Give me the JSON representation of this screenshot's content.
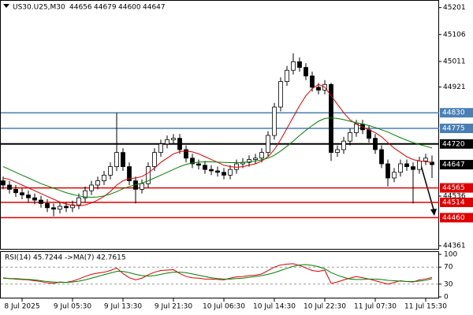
{
  "chart_data": {
    "type": "candlestick",
    "symbol": "US30.U25,M30",
    "ohlc": [
      44656,
      44679,
      44600,
      44647
    ],
    "categories": [
      null,
      null,
      null,
      "8 Jul 2025",
      null,
      null,
      null,
      null,
      null,
      null,
      null,
      "9 Jul 05:30",
      null,
      null,
      null,
      null,
      null,
      null,
      null,
      "9 Jul 13:30",
      null,
      null,
      null,
      null,
      null,
      null,
      null,
      "9 Jul 21:30",
      null,
      null,
      null,
      null,
      null,
      null,
      null,
      "10 Jul 06:30",
      null,
      null,
      null,
      null,
      null,
      null,
      null,
      "10 Jul 14:30",
      null,
      null,
      null,
      null,
      null,
      null,
      null,
      "10 Jul 22:30",
      null,
      null,
      null,
      null,
      null,
      null,
      null,
      "11 Jul 07:30",
      null,
      null,
      null,
      null,
      null,
      null,
      null,
      "11 Jul 15:30",
      null
    ],
    "open": [
      44590,
      44575,
      44560,
      44548,
      44540,
      44530,
      44522,
      44510,
      44495,
      44490,
      44500,
      44495,
      44505,
      44530,
      44555,
      44575,
      44590,
      44610,
      44640,
      44690,
      44640,
      44590,
      44560,
      44580,
      44640,
      44690,
      44720,
      44735,
      44740,
      44700,
      44670,
      44650,
      44645,
      44630,
      44625,
      44620,
      44610,
      44630,
      44650,
      44655,
      44665,
      44670,
      44690,
      44750,
      44850,
      44940,
      44980,
      45010,
      44990,
      44960,
      44920,
      44910,
      44930,
      44690,
      44700,
      44730,
      44760,
      44790,
      44770,
      44740,
      44700,
      44650,
      44600,
      44620,
      44650,
      44640,
      44630,
      44660,
      44656
    ],
    "high": [
      44605,
      44590,
      44575,
      44563,
      44555,
      44545,
      44537,
      44525,
      44510,
      44515,
      44515,
      44520,
      44545,
      44570,
      44590,
      44605,
      44625,
      44655,
      44830,
      44705,
      44655,
      44605,
      44595,
      44655,
      44705,
      44735,
      44750,
      44755,
      44755,
      44715,
      44685,
      44665,
      44660,
      44645,
      44640,
      44635,
      44645,
      44665,
      44670,
      44680,
      44685,
      44705,
      44765,
      44865,
      44955,
      44995,
      45040,
      45025,
      45005,
      44975,
      44935,
      44945,
      44935,
      44715,
      44745,
      44775,
      44805,
      44805,
      44785,
      44755,
      44715,
      44665,
      44635,
      44665,
      44665,
      44655,
      44675,
      44685,
      44679
    ],
    "low": [
      44560,
      44545,
      44533,
      44525,
      44515,
      44507,
      44495,
      44480,
      44465,
      44475,
      44480,
      44480,
      44490,
      44515,
      44540,
      44560,
      44575,
      44595,
      44625,
      44625,
      44575,
      44510,
      44545,
      44565,
      44625,
      44675,
      44705,
      44720,
      44685,
      44655,
      44635,
      44630,
      44615,
      44610,
      44605,
      44595,
      44595,
      44615,
      44635,
      44640,
      44650,
      44655,
      44675,
      44735,
      44835,
      44925,
      44965,
      44975,
      44945,
      44905,
      44895,
      44895,
      44660,
      44675,
      44685,
      44715,
      44745,
      44755,
      44725,
      44685,
      44635,
      44570,
      44585,
      44605,
      44625,
      44510,
      44615,
      44645,
      44600
    ],
    "close": [
      44575,
      44560,
      44548,
      44540,
      44530,
      44522,
      44510,
      44495,
      44490,
      44500,
      44495,
      44505,
      44530,
      44555,
      44575,
      44590,
      44610,
      44640,
      44690,
      44640,
      44590,
      44560,
      44580,
      44640,
      44690,
      44720,
      44735,
      44740,
      44700,
      44670,
      44650,
      44645,
      44630,
      44625,
      44620,
      44610,
      44630,
      44650,
      44655,
      44665,
      44670,
      44690,
      44750,
      44850,
      44940,
      44980,
      45010,
      44990,
      44960,
      44920,
      44910,
      44930,
      44690,
      44700,
      44730,
      44760,
      44790,
      44770,
      44740,
      44700,
      44650,
      44600,
      44620,
      44650,
      44640,
      44630,
      44660,
      44670,
      44647
    ],
    "up_color": "#ffffff",
    "down_color": "#000000",
    "overlays": [
      {
        "color": "#e00000",
        "values": [
          44600,
          44595,
          44585,
          44575,
          44565,
          44555,
          44545,
          44535,
          44525,
          44515,
          44508,
          44503,
          44502,
          44505,
          44512,
          44522,
          44535,
          44552,
          44575,
          44590,
          44598,
          44600,
          44605,
          44618,
          44635,
          44655,
          44670,
          44685,
          44693,
          44695,
          44692,
          44685,
          44675,
          44665,
          44655,
          44645,
          44640,
          44638,
          44640,
          44645,
          44650,
          44660,
          44675,
          44700,
          44735,
          44775,
          44815,
          44855,
          44890,
          44915,
          44930,
          44920,
          44890,
          44860,
          44830,
          44805,
          44790,
          44780,
          44770,
          44760,
          44745,
          44725,
          44705,
          44690,
          44675,
          44665,
          44660,
          44658,
          44655
        ]
      },
      {
        "color": "#008000",
        "values": [
          44640,
          44630,
          44620,
          44610,
          44600,
          44590,
          44580,
          44572,
          44564,
          44556,
          44548,
          44542,
          44537,
          44533,
          44532,
          44533,
          44537,
          44543,
          44552,
          44562,
          44570,
          44576,
          44582,
          44590,
          44600,
          44610,
          44620,
          44630,
          44640,
          44648,
          44653,
          44656,
          44657,
          44657,
          44656,
          44655,
          44654,
          44654,
          44655,
          44657,
          44660,
          44664,
          44670,
          44680,
          44695,
          44712,
          44730,
          44750,
          44768,
          44785,
          44800,
          44810,
          44812,
          44810,
          44806,
          44800,
          44795,
          44790,
          44785,
          44778,
          44770,
          44762,
          44752,
          44742,
          44733,
          44725,
          44718,
          44712,
          44706
        ]
      }
    ],
    "ylim": [
      44350,
      45225
    ],
    "yticks": [
      45201,
      45106,
      45011,
      44921,
      44536,
      44361
    ],
    "levels": [
      {
        "value": 44830,
        "color": "#4a7fb5"
      },
      {
        "value": 44775,
        "color": "#4a7fb5"
      },
      {
        "value": 44720,
        "color": "#000000"
      },
      {
        "value": 44565,
        "color": "#e00000"
      },
      {
        "value": 44514,
        "color": "#e00000"
      },
      {
        "value": 44460,
        "color": "#e00000"
      }
    ],
    "current_price": 44647,
    "indicator": {
      "title": "RSI(14) 45.7244 ->MA(7) 42.7615",
      "ylim": [
        0,
        100
      ],
      "yticks": [
        100,
        70,
        30,
        0
      ],
      "series": [
        {
          "color": "#e00000",
          "values": [
            45,
            43,
            42,
            41,
            40,
            38,
            36,
            33,
            32,
            35,
            34,
            37,
            42,
            48,
            53,
            56,
            58,
            62,
            68,
            55,
            45,
            40,
            44,
            52,
            58,
            62,
            63,
            64,
            55,
            48,
            45,
            44,
            42,
            42,
            41,
            40,
            44,
            47,
            48,
            50,
            51,
            54,
            62,
            70,
            75,
            77,
            78,
            74,
            68,
            62,
            60,
            63,
            32,
            35,
            40,
            44,
            48,
            45,
            42,
            38,
            34,
            30,
            34,
            38,
            36,
            35,
            40,
            42,
            45.7244
          ]
        },
        {
          "color": "#008000",
          "values": [
            44,
            43,
            43,
            42,
            41,
            40,
            38,
            36,
            35,
            34,
            34,
            35,
            37,
            40,
            44,
            48,
            52,
            56,
            60,
            60,
            57,
            53,
            50,
            49,
            50,
            53,
            56,
            58,
            58,
            57,
            54,
            51,
            48,
            45,
            43,
            42,
            42,
            43,
            44,
            46,
            48,
            50,
            53,
            57,
            62,
            67,
            72,
            75,
            76,
            74,
            71,
            66,
            57,
            51,
            46,
            42,
            41,
            41,
            42,
            42,
            41,
            39,
            38,
            37,
            36,
            36,
            37,
            39,
            42.7615
          ]
        }
      ]
    }
  }
}
